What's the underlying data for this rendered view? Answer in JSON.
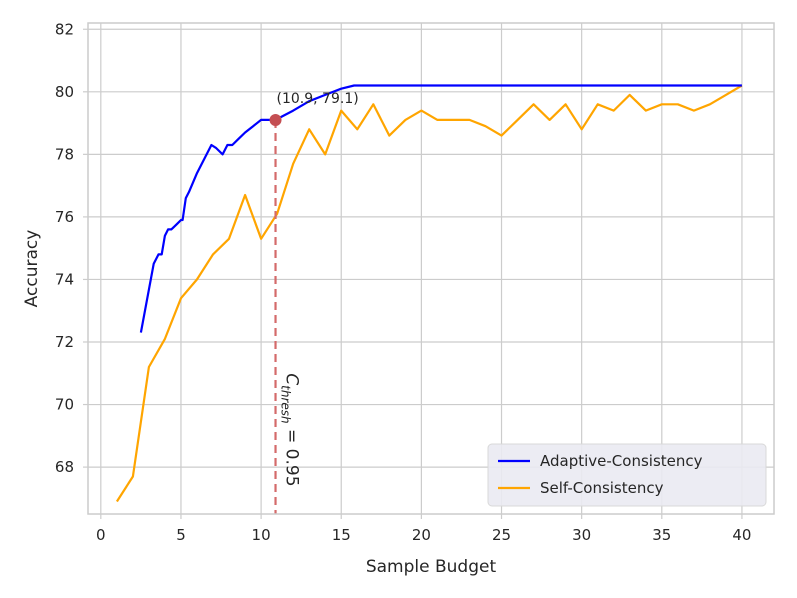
{
  "chart_data": {
    "type": "line",
    "title": "",
    "xlabel": "Sample Budget",
    "ylabel": "Accuracy",
    "xlim": [
      -0.8,
      42.0
    ],
    "ylim": [
      66.5,
      82.2
    ],
    "xticks": [
      0,
      5,
      10,
      15,
      20,
      25,
      30,
      35,
      40
    ],
    "yticks": [
      68,
      70,
      72,
      74,
      76,
      78,
      80,
      82
    ],
    "grid": true,
    "legend_position": "bottom-right",
    "series": [
      {
        "name": "Adaptive-Consistency",
        "color": "#0000ff",
        "x": [
          2.5,
          3.3,
          3.6,
          3.8,
          4.0,
          4.2,
          4.4,
          4.6,
          4.8,
          5.0,
          5.1,
          5.3,
          5.5,
          6.0,
          6.5,
          6.9,
          7.2,
          7.6,
          7.9,
          8.2,
          8.6,
          9.0,
          9.5,
          10.0,
          10.3,
          10.9,
          12.0,
          13.0,
          14.0,
          15.0,
          15.8,
          17,
          20,
          25,
          30,
          35,
          40
        ],
        "values": [
          72.3,
          74.5,
          74.8,
          74.8,
          75.4,
          75.6,
          75.6,
          75.7,
          75.8,
          75.9,
          75.9,
          76.6,
          76.8,
          77.4,
          77.9,
          78.3,
          78.2,
          78.0,
          78.3,
          78.3,
          78.5,
          78.7,
          78.9,
          79.1,
          79.1,
          79.1,
          79.4,
          79.7,
          79.9,
          80.1,
          80.2,
          80.2,
          80.2,
          80.2,
          80.2,
          80.2,
          80.2
        ]
      },
      {
        "name": "Self-Consistency",
        "color": "#ffa500",
        "x": [
          1,
          2,
          3,
          4,
          5,
          6,
          7,
          8,
          9,
          10,
          11,
          12,
          13,
          14,
          15,
          16,
          17,
          18,
          19,
          20,
          21,
          22,
          23,
          24,
          25,
          26,
          27,
          28,
          29,
          30,
          31,
          32,
          33,
          34,
          35,
          36,
          37,
          38,
          39,
          40
        ],
        "values": [
          66.9,
          67.7,
          71.2,
          72.1,
          73.4,
          74.0,
          74.8,
          75.3,
          76.7,
          75.3,
          76.1,
          77.7,
          78.8,
          78.0,
          79.4,
          78.8,
          79.6,
          78.6,
          79.1,
          79.4,
          79.1,
          79.1,
          79.1,
          78.9,
          78.6,
          79.1,
          79.6,
          79.1,
          79.6,
          78.8,
          79.6,
          79.4,
          79.9,
          79.4,
          79.6,
          79.6,
          79.4,
          79.6,
          79.9,
          80.2
        ]
      }
    ],
    "annotations": {
      "point_label": "(10.9, 79.1)",
      "point_x": 10.9,
      "point_y": 79.1,
      "threshold_label_symbol": "C",
      "threshold_label_subscript": "thresh",
      "threshold_label_value": " = 0.95",
      "marker_color": "#c44e52",
      "threshold_color": "#d46a6a"
    }
  }
}
